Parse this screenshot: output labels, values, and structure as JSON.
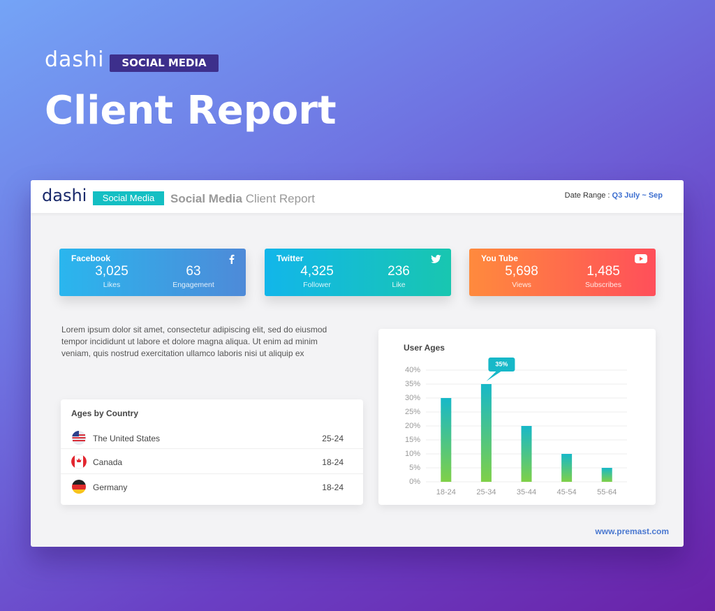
{
  "brand": {
    "logo": "dashi",
    "badge": "SOCIAL MEDIA",
    "title": "Client Report"
  },
  "report": {
    "logo": "dashi",
    "badge": "Social Media",
    "title_bold": "Social Media",
    "title_light": "Client Report",
    "date_label": "Date Range :",
    "date_value": "Q3 July ~ Sep",
    "footer": "www.premast.com"
  },
  "cards": [
    {
      "name": "Facebook",
      "stats": [
        {
          "value": "3,025",
          "label": "Likes"
        },
        {
          "value": "63",
          "label": "Engagement"
        }
      ]
    },
    {
      "name": "Twitter",
      "stats": [
        {
          "value": "4,325",
          "label": "Follower"
        },
        {
          "value": "236",
          "label": "Like"
        }
      ]
    },
    {
      "name": "You Tube",
      "stats": [
        {
          "value": "5,698",
          "label": "Views"
        },
        {
          "value": "1,485",
          "label": "Subscribes"
        }
      ]
    }
  ],
  "description": "Lorem ipsum dolor sit amet, consectetur adipiscing elit, sed do eiusmod tempor incididunt ut labore et dolore magna aliqua. Ut enim ad minim veniam, quis nostrud exercitation ullamco laboris nisi ut aliquip ex",
  "table": {
    "title": "Ages by Country",
    "rows": [
      [
        "The United States",
        "25-24"
      ],
      [
        "Canada",
        "18-24"
      ],
      [
        "Germany",
        "18-24"
      ]
    ]
  },
  "chart_data": {
    "type": "bar",
    "title": "User Ages",
    "categories": [
      "18-24",
      "25-34",
      "35-44",
      "45-54",
      "55-64"
    ],
    "values": [
      30,
      35,
      20,
      10,
      5
    ],
    "value_labels": [
      null,
      "35%",
      null,
      null,
      null
    ],
    "color": "#17b8c8",
    "color_bottom": "#7fd048",
    "ylim": [
      0,
      40
    ],
    "yticks": [
      {
        "value": 0,
        "label": "0%"
      },
      {
        "value": 5,
        "label": "5%"
      },
      {
        "value": 10,
        "label": "10%"
      },
      {
        "value": 15,
        "label": "15%"
      },
      {
        "value": 20,
        "label": "20%"
      },
      {
        "value": 25,
        "label": "25%"
      },
      {
        "value": 30,
        "label": "30%"
      },
      {
        "value": 35,
        "label": "35%"
      },
      {
        "value": 40,
        "label": "40%"
      }
    ],
    "grid": true
  }
}
